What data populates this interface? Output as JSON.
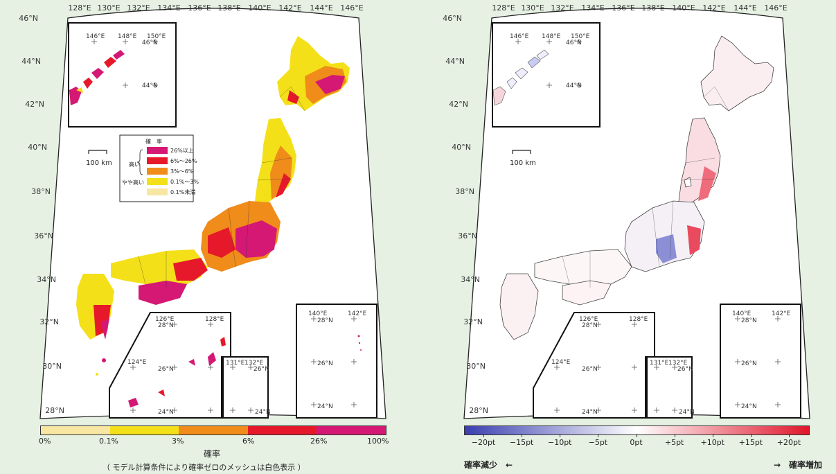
{
  "left_map": {
    "lon_labels": [
      "128°E",
      "130°E",
      "132°E",
      "134°E",
      "136°E",
      "138°E",
      "140°E",
      "142°E",
      "144°E",
      "146°E"
    ],
    "lat_labels": [
      "46°N",
      "44°N",
      "42°N",
      "40°N",
      "38°N",
      "36°N",
      "34°N",
      "32°N",
      "30°N",
      "28°N"
    ],
    "scale_label": "100 km",
    "legend": {
      "title": "確　率",
      "group_high": "高い",
      "group_mid": "やや高い",
      "items": [
        "26%以上",
        "6%～26%",
        "3%～6%",
        "0.1%～3%",
        "0.1%未満"
      ],
      "colors": [
        "#d41873",
        "#e6192a",
        "#ef8c1a",
        "#f4e018",
        "#f7e7a3"
      ]
    },
    "inset_northeast": {
      "lons": [
        "146°E",
        "148°E",
        "150°E"
      ],
      "lats": [
        "46°N",
        "44°N"
      ]
    },
    "inset_sw": {
      "lons": [
        "126°E",
        "128°E",
        "124°E"
      ],
      "lats": [
        "28°N",
        "26°N",
        "24°N"
      ]
    },
    "inset_daito": {
      "lons": [
        "131°E",
        "132°E"
      ],
      "lats": [
        "26°N",
        "24°N"
      ]
    },
    "inset_ogasawara": {
      "lons": [
        "140°E",
        "142°E"
      ],
      "lats": [
        "28°N",
        "26°N",
        "24°N"
      ]
    }
  },
  "left_colorbar": {
    "title": "確率",
    "ticks": [
      "0%",
      "0.1%",
      "3%",
      "6%",
      "26%",
      "100%"
    ],
    "colors": [
      "#f7e7a3",
      "#f4e018",
      "#ef8c1a",
      "#e6192a",
      "#d41873"
    ],
    "footnote": "（ モデル計算条件により確率ゼロのメッシュは白色表示 ）"
  },
  "right_map": {
    "lon_labels": [
      "128°E",
      "130°E",
      "132°E",
      "134°E",
      "136°E",
      "138°E",
      "140°E",
      "142°E",
      "144°E",
      "146°E"
    ],
    "lat_labels": [
      "46°N",
      "44°N",
      "42°N",
      "40°N",
      "38°N",
      "36°N",
      "34°N",
      "32°N",
      "30°N",
      "28°N"
    ],
    "scale_label": "100 km",
    "inset_northeast": {
      "lons": [
        "146°E",
        "148°E",
        "150°E"
      ],
      "lats": [
        "46°N",
        "44°N"
      ]
    },
    "inset_sw": {
      "lons": [
        "126°E",
        "128°E",
        "124°E"
      ],
      "lats": [
        "28°N",
        "26°N",
        "24°N"
      ]
    },
    "inset_daito": {
      "lons": [
        "131°E",
        "132°E"
      ],
      "lats": [
        "26°N",
        "24°N"
      ]
    },
    "inset_ogasawara": {
      "lons": [
        "140°E",
        "142°E"
      ],
      "lats": [
        "28°N",
        "26°N",
        "24°N"
      ]
    }
  },
  "right_colorbar": {
    "ticks": [
      "−20pt",
      "−15pt",
      "−10pt",
      "−5pt",
      "0pt",
      "+5pt",
      "+10pt",
      "+15pt",
      "+20pt"
    ],
    "decrease_label": "確率減少　←",
    "increase_label": "→　確率増加",
    "color_low": "#3b3fb0",
    "color_mid": "#ffffff",
    "color_high": "#e0162b"
  }
}
